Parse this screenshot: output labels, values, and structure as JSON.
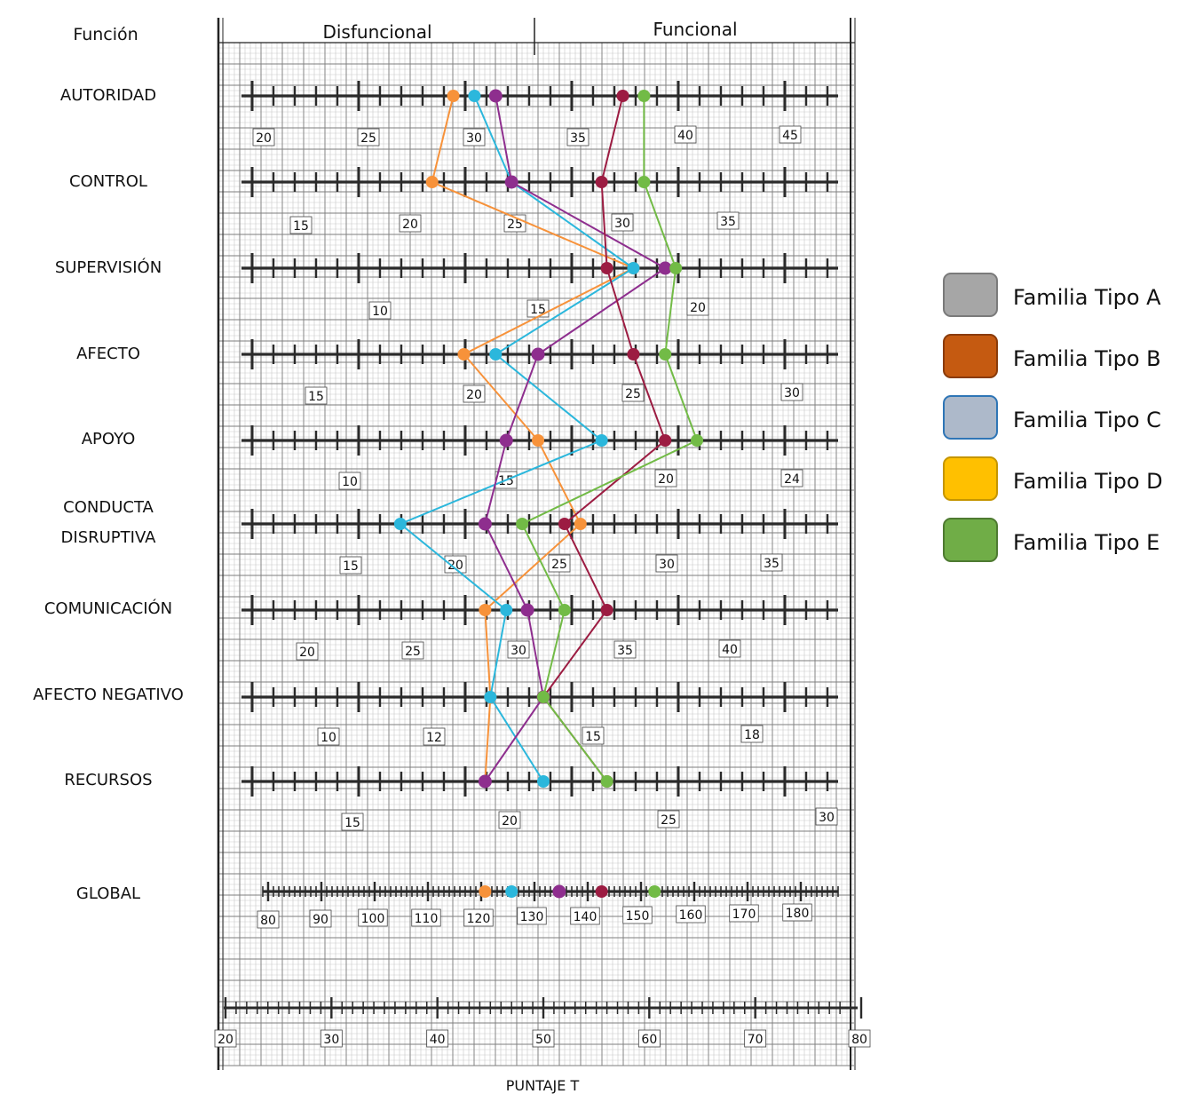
{
  "chart_data": {
    "type": "line",
    "header": {
      "function_label": "Función",
      "left_label": "Disfuncional",
      "right_label": "Funcional"
    },
    "xlabel": "PUNTAJE T",
    "x_axis": {
      "range": [
        20,
        80
      ],
      "ticks": [
        20,
        30,
        40,
        50,
        60,
        70,
        80
      ]
    },
    "rows": [
      {
        "name": "AUTORIDAD",
        "ticks": [
          20,
          25,
          30,
          35,
          40,
          45
        ]
      },
      {
        "name": "CONTROL",
        "ticks": [
          15,
          20,
          25,
          30,
          35
        ]
      },
      {
        "name": "SUPERVISIÓN",
        "ticks": [
          10,
          15,
          20
        ]
      },
      {
        "name": "AFECTO",
        "ticks": [
          15,
          20,
          25,
          30
        ]
      },
      {
        "name": "APOYO",
        "ticks": [
          10,
          15,
          20,
          24
        ]
      },
      {
        "name": "CONDUCTA\nDISRUPTIVA",
        "ticks": [
          15,
          20,
          25,
          30,
          35
        ]
      },
      {
        "name": "COMUNICACIÓN",
        "ticks": [
          20,
          25,
          30,
          35,
          40
        ]
      },
      {
        "name": "AFECTO NEGATIVO",
        "ticks": [
          10,
          12,
          15,
          18
        ]
      },
      {
        "name": "RECURSOS",
        "ticks": [
          15,
          20,
          25,
          30
        ]
      },
      {
        "name": "GLOBAL",
        "ticks": [
          80,
          90,
          100,
          110,
          120,
          130,
          140,
          150,
          160,
          170,
          180
        ]
      }
    ],
    "series_t_scores": [
      {
        "color": "#f7923a",
        "values": [
          41.5,
          39.5,
          58.5,
          42.5,
          49.5,
          53.5,
          44.5,
          45,
          44.5,
          44.5
        ]
      },
      {
        "color": "#2bb7dc",
        "values": [
          43.5,
          47,
          58.5,
          45.5,
          55.5,
          36.5,
          46.5,
          45,
          50,
          47
        ]
      },
      {
        "color": "#8e2e8e",
        "values": [
          45.5,
          47,
          61.5,
          49.5,
          46.5,
          44.5,
          48.5,
          50,
          44.5,
          51.5
        ]
      },
      {
        "color": "#9c1c42",
        "values": [
          57.5,
          55.5,
          56,
          58.5,
          61.5,
          52,
          56,
          50,
          56,
          55.5
        ]
      },
      {
        "color": "#72bb46",
        "values": [
          59.5,
          59.5,
          62.5,
          61.5,
          64.5,
          48,
          52,
          50,
          56,
          60.5
        ]
      }
    ],
    "legend": {
      "position": "right",
      "entries": [
        {
          "label": "Familia Tipo A",
          "color": "#a6a6a6",
          "border": "#7a7a7a"
        },
        {
          "label": "Familia Tipo B",
          "color": "#c55a11",
          "border": "#8a3b0a"
        },
        {
          "label": "Familia Tipo C",
          "color": "#adb9ca",
          "border": "#2e75b6"
        },
        {
          "label": "Familia Tipo D",
          "color": "#ffc000",
          "border": "#c59500"
        },
        {
          "label": "Familia Tipo E",
          "color": "#70ad47",
          "border": "#4e7a31"
        }
      ]
    }
  }
}
